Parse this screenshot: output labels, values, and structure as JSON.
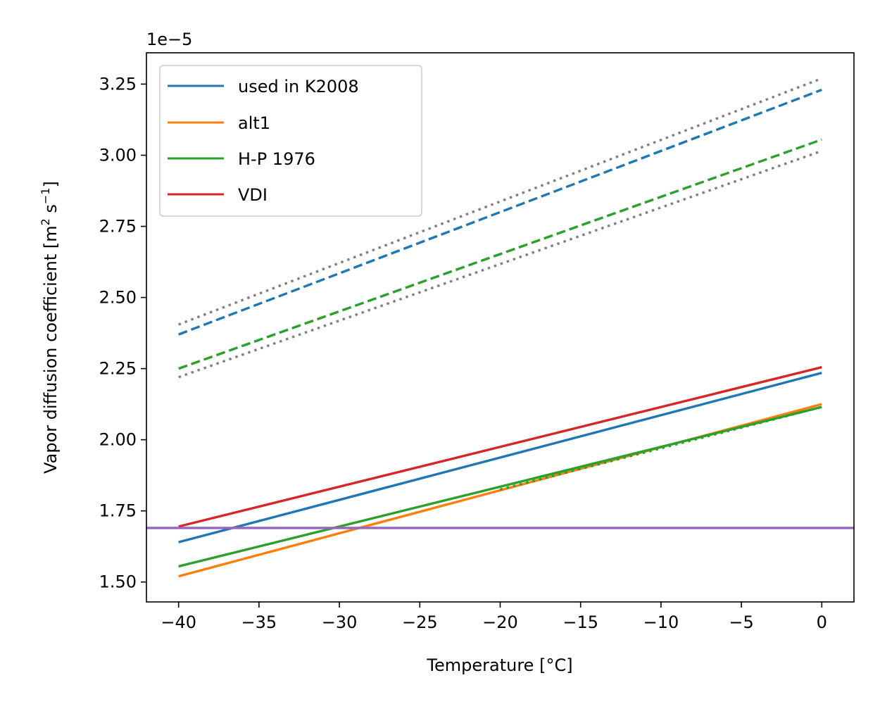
{
  "chart_data": {
    "type": "line",
    "xlabel": "Temperature [°C]",
    "ylabel_main": "Vapor diffusion coefficient  [m",
    "ylabel_sup1": "2",
    "ylabel_mid": " s",
    "ylabel_sup2": "−1",
    "ylabel_end": "]",
    "offset_label": "1e−5",
    "xlim": [
      -42,
      2
    ],
    "ylim": [
      1.43,
      3.36
    ],
    "xticks": [
      -40,
      -35,
      -30,
      -25,
      -20,
      -15,
      -10,
      -5,
      0
    ],
    "xtick_labels": [
      "−40",
      "−35",
      "−30",
      "−25",
      "−20",
      "−15",
      "−10",
      "−5",
      "0"
    ],
    "yticks": [
      1.5,
      1.75,
      2.0,
      2.25,
      2.5,
      2.75,
      3.0,
      3.25
    ],
    "ytick_labels": [
      "1.50",
      "1.75",
      "2.00",
      "2.25",
      "2.50",
      "2.75",
      "3.00",
      "3.25"
    ],
    "legend_position": "top-left",
    "legend": [
      {
        "label": "used in K2008",
        "color": "#1f77b4"
      },
      {
        "label": "alt1",
        "color": "#ff7f0e"
      },
      {
        "label": "H-P 1976",
        "color": "#2ca02c"
      },
      {
        "label": "VDI",
        "color": "#d62728"
      }
    ],
    "series": [
      {
        "name": "used in K2008",
        "color": "#1f77b4",
        "style": "solid",
        "x": [
          -40,
          0
        ],
        "y": [
          1.64,
          2.235
        ]
      },
      {
        "name": "alt1",
        "color": "#ff7f0e",
        "style": "solid",
        "x": [
          -40,
          0
        ],
        "y": [
          1.52,
          2.125
        ]
      },
      {
        "name": "H-P 1976",
        "color": "#2ca02c",
        "style": "solid",
        "x": [
          -40,
          0
        ],
        "y": [
          1.555,
          2.115
        ]
      },
      {
        "name": "VDI",
        "color": "#d62728",
        "style": "solid",
        "x": [
          -40,
          0
        ],
        "y": [
          1.695,
          2.255
        ]
      },
      {
        "color": "#9467bd",
        "style": "solid",
        "x": [
          -42,
          2
        ],
        "y": [
          1.69,
          1.69
        ]
      },
      {
        "color": "#2ca02c",
        "style": "dotted",
        "x": [
          -20,
          0
        ],
        "y": [
          1.825,
          2.115
        ]
      },
      {
        "color": "#1f77b4",
        "style": "dashed",
        "x": [
          -40,
          0
        ],
        "y": [
          2.37,
          3.23
        ]
      },
      {
        "color": "#2ca02c",
        "style": "dashed",
        "x": [
          -40,
          0
        ],
        "y": [
          2.25,
          3.055
        ]
      },
      {
        "color": "#808080",
        "style": "dotted",
        "x": [
          -40,
          0
        ],
        "y": [
          2.405,
          3.27
        ]
      },
      {
        "color": "#808080",
        "style": "dotted",
        "x": [
          -40,
          0
        ],
        "y": [
          2.22,
          3.015
        ]
      }
    ]
  }
}
